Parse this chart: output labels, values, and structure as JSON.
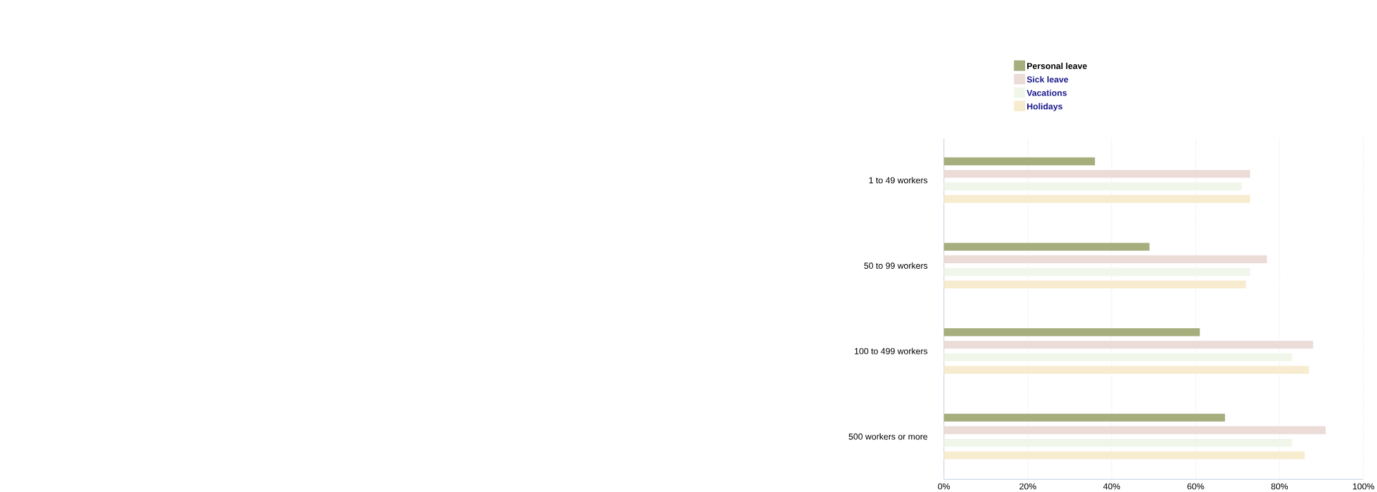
{
  "chart_data": {
    "type": "bar",
    "orientation": "horizontal",
    "categories": [
      "1 to 49 workers",
      "50 to 99 workers",
      "100 to 499 workers",
      "500 workers or more"
    ],
    "series": [
      {
        "name": "Personal leave",
        "color": "#a6ae7e",
        "values": [
          36,
          49,
          61,
          67
        ]
      },
      {
        "name": "Sick leave",
        "color": "#ebdcd8",
        "values": [
          73,
          77,
          88,
          91
        ]
      },
      {
        "name": "Vacations",
        "color": "#f0f7ea",
        "values": [
          71,
          73,
          83,
          83
        ]
      },
      {
        "name": "Holidays",
        "color": "#f8ecd0",
        "values": [
          73,
          72,
          87,
          86
        ]
      }
    ],
    "xlim": [
      0,
      100
    ],
    "xticks": [
      {
        "value": 0,
        "label": "0%"
      },
      {
        "value": 20,
        "label": "20%"
      },
      {
        "value": 40,
        "label": "40%"
      },
      {
        "value": 60,
        "label": "60%"
      },
      {
        "value": 80,
        "label": "80%"
      },
      {
        "value": 100,
        "label": "100%"
      }
    ],
    "grid": "x",
    "legend": "top"
  }
}
